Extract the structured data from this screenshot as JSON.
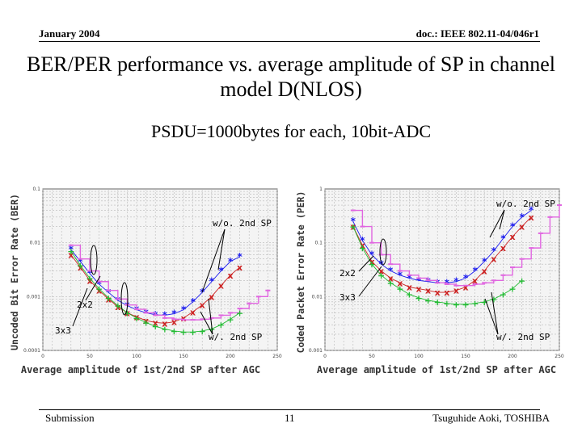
{
  "header": {
    "left": "January 2004",
    "right": "doc.: IEEE 802.11-04/046r1"
  },
  "title": "BER/PER performance vs. average amplitude of SP in channel model D(NLOS)",
  "subtitle": "PSDU=1000bytes for each, 10bit-ADC",
  "footer": {
    "left": "Submission",
    "page": "11",
    "right": "Tsuguhide Aoki, TOSHIBA"
  },
  "colors": {
    "blue": "#1a1aee",
    "red": "#cc2222",
    "green": "#22bb33",
    "magenta": "#e066e0",
    "grid": "#b8b8b8"
  },
  "chart_data": [
    {
      "type": "line",
      "title": "",
      "xlabel": "Average amplitude of 1st/2nd SP after AGC",
      "ylabel": "Uncoded Bit Error Rate (BER)",
      "xlim": [
        0,
        250
      ],
      "ylim": [
        0.0001,
        0.1
      ],
      "yscale": "log",
      "x_ticks": [
        "0",
        "50",
        "100",
        "150",
        "200",
        "250"
      ],
      "y_ticks": [
        "0.1",
        "0.01",
        "0.001",
        "0.0001"
      ],
      "annotations": [
        "w/o. 2nd SP",
        "2x2",
        "3x3",
        "w/. 2nd SP"
      ],
      "series": [
        {
          "name": "2x2 w/o. 2nd SP",
          "color": "blue",
          "marker": "*",
          "x": [
            30,
            40,
            50,
            60,
            70,
            80,
            90,
            100,
            110,
            120,
            130,
            140,
            150,
            160,
            170,
            180,
            190,
            200,
            210
          ],
          "y": [
            0.0075,
            0.0045,
            0.0027,
            0.0017,
            0.0012,
            0.00085,
            0.00068,
            0.00057,
            0.0005,
            0.00046,
            0.00045,
            0.00048,
            0.00057,
            0.0008,
            0.0012,
            0.0019,
            0.003,
            0.0045,
            0.0055
          ]
        },
        {
          "name": "3x3 w/o. 2nd SP",
          "color": "red",
          "marker": "x",
          "x": [
            30,
            40,
            50,
            60,
            70,
            80,
            90,
            100,
            110,
            120,
            130,
            140,
            150,
            160,
            170,
            180,
            190,
            200,
            210
          ],
          "y": [
            0.006,
            0.0035,
            0.002,
            0.0013,
            0.0009,
            0.00065,
            0.0005,
            0.00042,
            0.00036,
            0.00033,
            0.00032,
            0.00034,
            0.0004,
            0.00052,
            0.0007,
            0.001,
            0.0016,
            0.0025,
            0.0035
          ]
        },
        {
          "name": "2x2 w/. 2nd SP",
          "color": "magenta",
          "marker": "-",
          "x": [
            30,
            40,
            50,
            60,
            70,
            80,
            90,
            100,
            110,
            120,
            130,
            140,
            150,
            160,
            170,
            180,
            190,
            200,
            210,
            220,
            230,
            240
          ],
          "y": [
            0.009,
            0.005,
            0.003,
            0.0019,
            0.0013,
            0.0009,
            0.0007,
            0.00058,
            0.0005,
            0.00045,
            0.0004,
            0.00038,
            0.00037,
            0.00037,
            0.00038,
            0.0004,
            0.00045,
            0.0005,
            0.0006,
            0.00075,
            0.001,
            0.0013
          ]
        },
        {
          "name": "3x3 w/. 2nd SP",
          "color": "green",
          "marker": "+",
          "x": [
            30,
            40,
            50,
            60,
            70,
            80,
            90,
            100,
            110,
            120,
            130,
            140,
            150,
            160,
            170,
            180,
            190,
            200,
            210
          ],
          "y": [
            0.007,
            0.0038,
            0.0022,
            0.0014,
            0.00095,
            0.00068,
            0.0005,
            0.0004,
            0.00033,
            0.00028,
            0.00025,
            0.00023,
            0.00022,
            0.00022,
            0.00023,
            0.00025,
            0.0003,
            0.00038,
            0.0005
          ]
        }
      ]
    },
    {
      "type": "line",
      "title": "",
      "xlabel": "Average amplitude of 1st/2nd SP after AGC",
      "ylabel": "Coded Packet Error Rate (PER)",
      "xlim": [
        0,
        250
      ],
      "ylim": [
        0.001,
        1
      ],
      "yscale": "log",
      "x_ticks": [
        "0",
        "50",
        "100",
        "150",
        "200",
        "250"
      ],
      "y_ticks": [
        "1",
        "0.1",
        "0.01",
        "0.001"
      ],
      "annotations": [
        "w/o. 2nd SP",
        "2x2",
        "3x3",
        "w/. 2nd SP"
      ],
      "series": [
        {
          "name": "2x2 w/o. 2nd SP",
          "color": "blue",
          "marker": "*",
          "x": [
            30,
            40,
            50,
            60,
            70,
            80,
            90,
            100,
            110,
            120,
            130,
            140,
            150,
            160,
            170,
            180,
            190,
            200,
            210,
            220
          ],
          "y": [
            0.25,
            0.11,
            0.06,
            0.04,
            0.03,
            0.025,
            0.022,
            0.02,
            0.019,
            0.018,
            0.018,
            0.019,
            0.022,
            0.03,
            0.045,
            0.07,
            0.12,
            0.2,
            0.3,
            0.4
          ]
        },
        {
          "name": "3x3 w/o. 2nd SP",
          "color": "red",
          "marker": "x",
          "x": [
            30,
            40,
            50,
            60,
            70,
            80,
            90,
            100,
            110,
            120,
            130,
            140,
            150,
            160,
            170,
            180,
            190,
            200,
            210,
            220
          ],
          "y": [
            0.2,
            0.09,
            0.045,
            0.03,
            0.022,
            0.018,
            0.015,
            0.014,
            0.013,
            0.012,
            0.012,
            0.013,
            0.015,
            0.02,
            0.03,
            0.05,
            0.08,
            0.13,
            0.2,
            0.3
          ]
        },
        {
          "name": "2x2 w/. 2nd SP",
          "color": "magenta",
          "marker": "-",
          "x": [
            30,
            40,
            50,
            60,
            70,
            80,
            90,
            100,
            110,
            120,
            130,
            140,
            150,
            160,
            170,
            180,
            190,
            200,
            210,
            220,
            230,
            240,
            250
          ],
          "y": [
            0.4,
            0.2,
            0.1,
            0.06,
            0.04,
            0.03,
            0.025,
            0.022,
            0.02,
            0.018,
            0.017,
            0.016,
            0.016,
            0.017,
            0.018,
            0.02,
            0.025,
            0.035,
            0.05,
            0.08,
            0.15,
            0.3,
            0.5
          ]
        },
        {
          "name": "3x3 w/. 2nd SP",
          "color": "green",
          "marker": "+",
          "x": [
            30,
            40,
            50,
            60,
            70,
            80,
            90,
            100,
            110,
            120,
            130,
            140,
            150,
            160,
            170,
            180,
            190,
            200,
            210
          ],
          "y": [
            0.2,
            0.08,
            0.04,
            0.025,
            0.018,
            0.014,
            0.011,
            0.0095,
            0.0085,
            0.008,
            0.0075,
            0.0072,
            0.0072,
            0.0075,
            0.008,
            0.009,
            0.011,
            0.014,
            0.02
          ]
        }
      ]
    }
  ]
}
